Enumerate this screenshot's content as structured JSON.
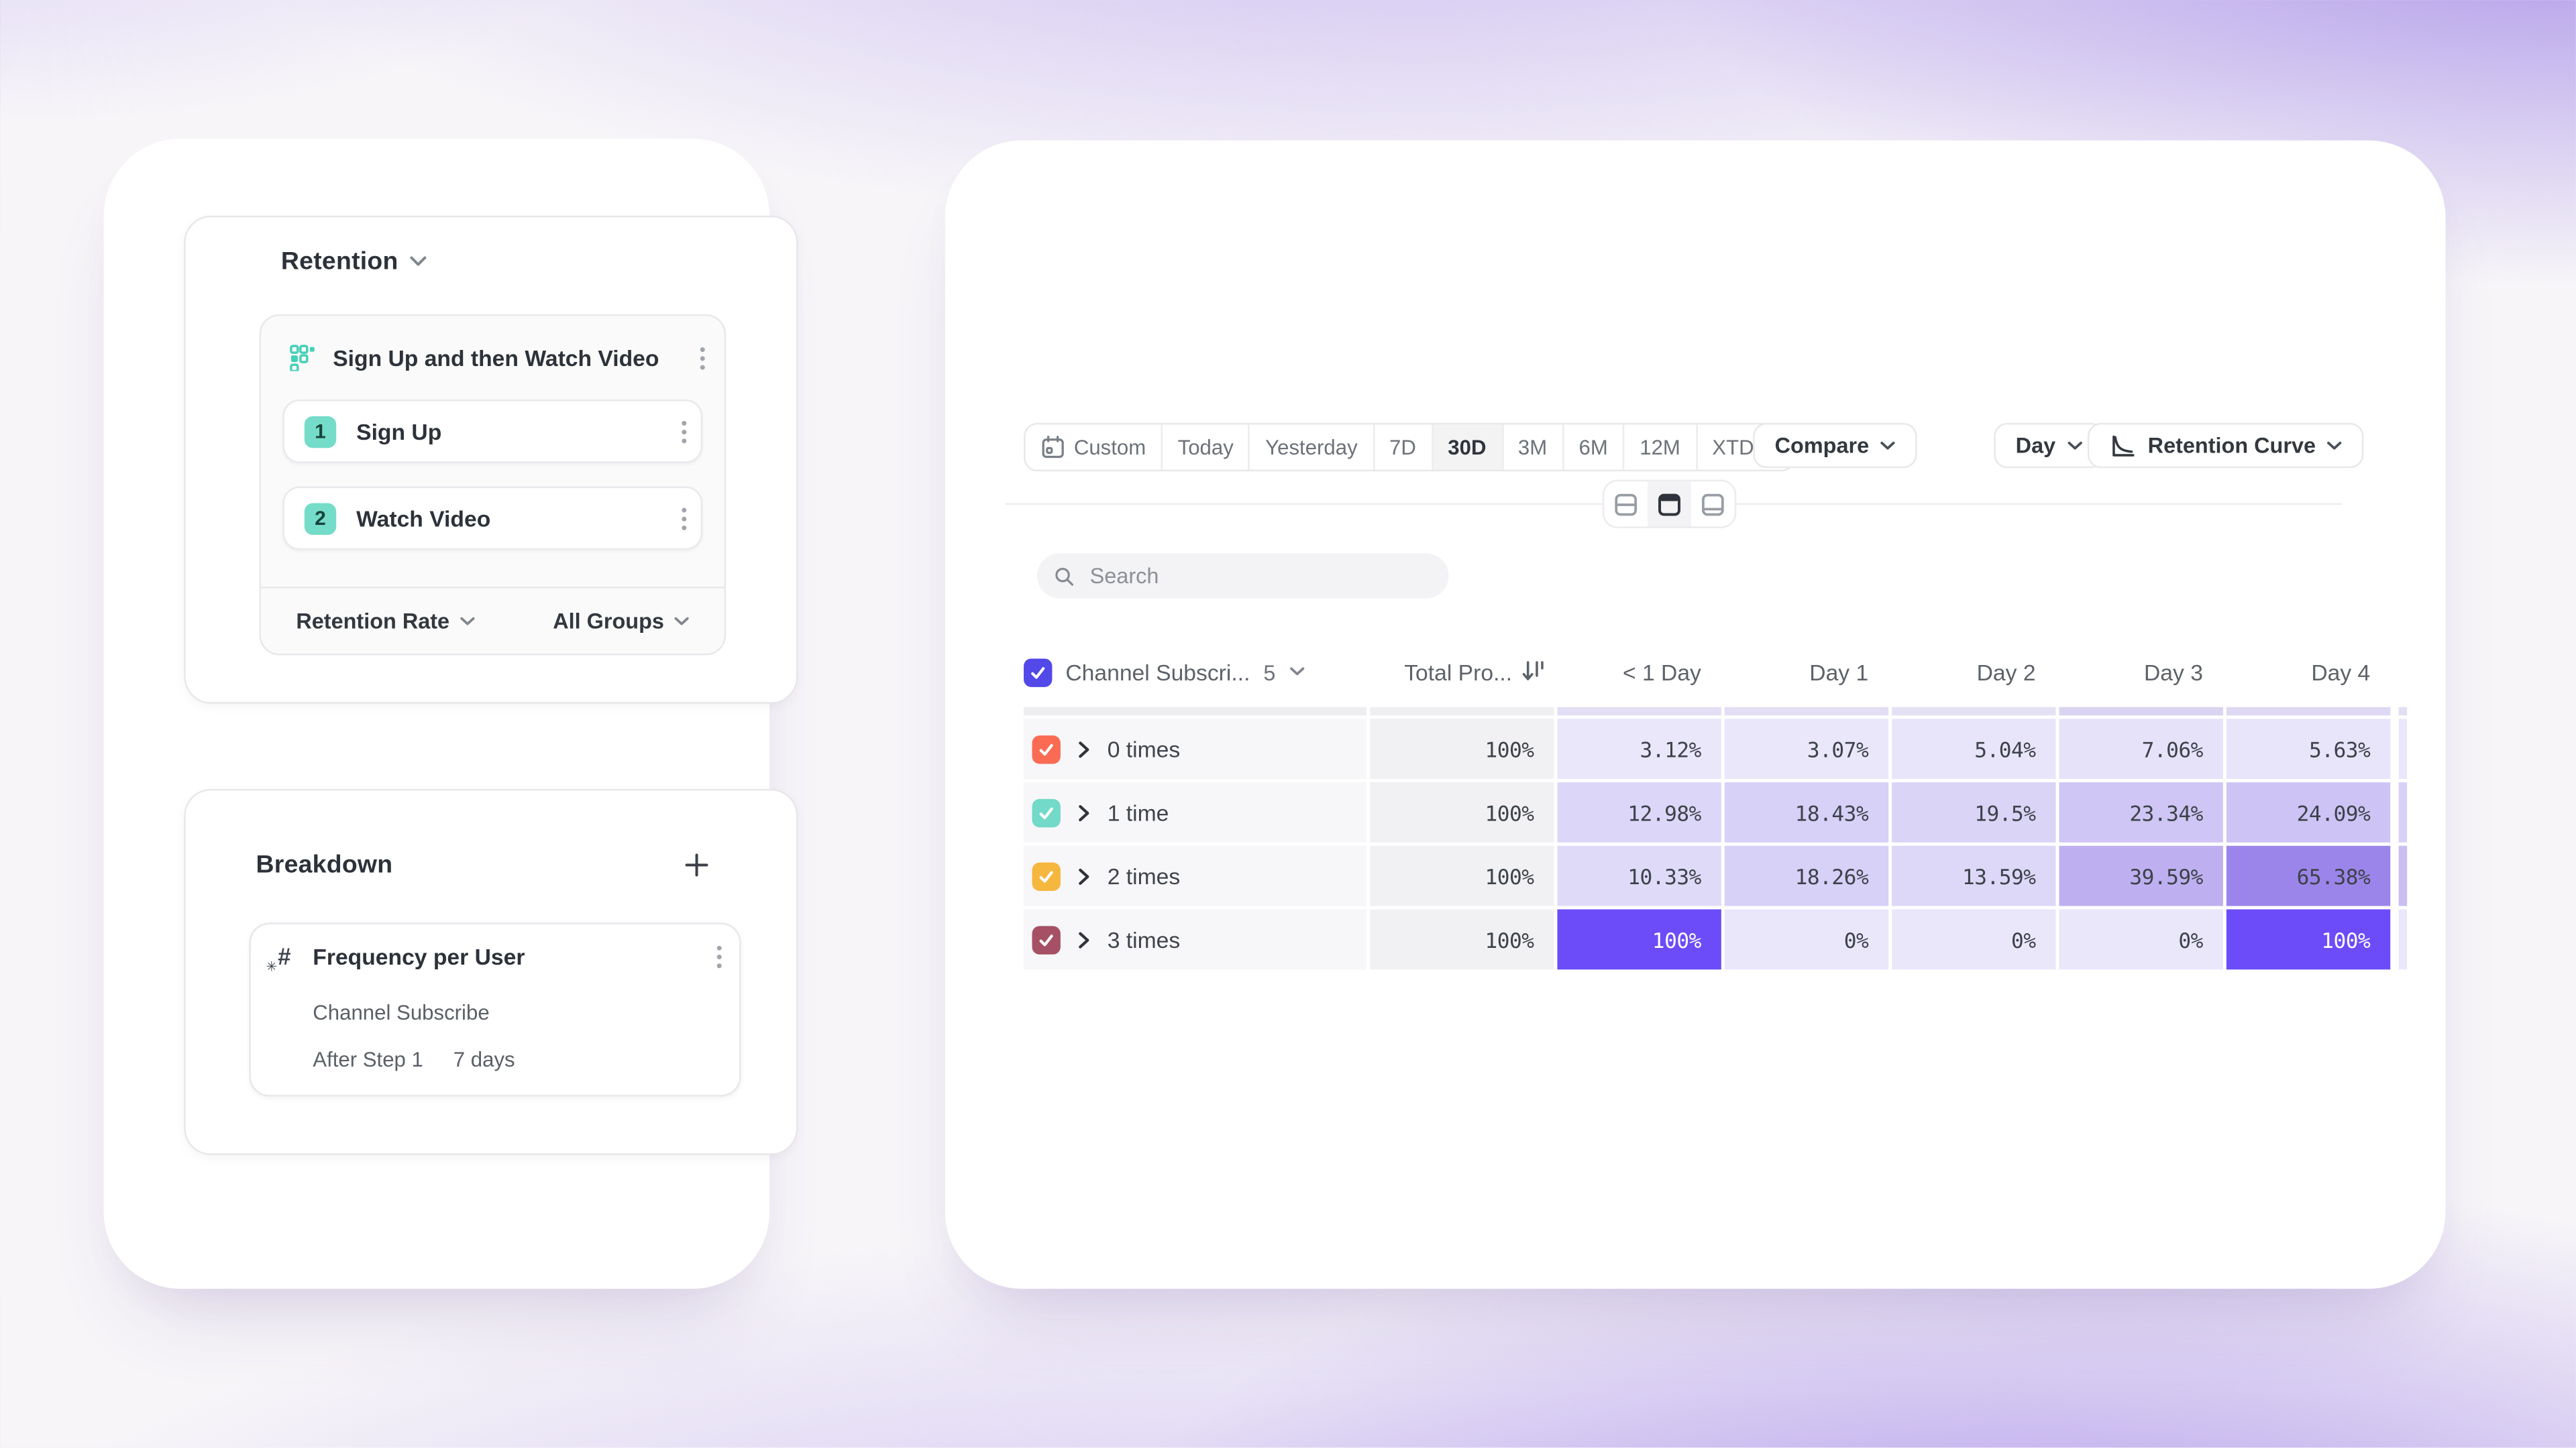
{
  "colors": {
    "accent_purple": "#6b4cf8",
    "select_all_checkbox": "#5348e8",
    "teal_badge": "#74dcc8"
  },
  "icons": {
    "hash": "#",
    "sparkle": "✳"
  },
  "left_panel": {
    "retention": {
      "title": "Retention",
      "query": {
        "title": "Sign Up and then Watch Video",
        "steps": [
          {
            "num": "1",
            "label": "Sign Up"
          },
          {
            "num": "2",
            "label": "Watch Video"
          }
        ],
        "footer_left": "Retention Rate",
        "footer_right": "All Groups"
      }
    },
    "breakdown": {
      "title": "Breakdown",
      "card": {
        "title": "Frequency per User",
        "line1": "Channel Subscribe",
        "line2_left": "After Step 1",
        "line2_right": "7 days"
      }
    }
  },
  "toolbar": {
    "segments": [
      {
        "label": "Custom",
        "icon": "calendar",
        "active": false,
        "chevron": false
      },
      {
        "label": "Today",
        "active": false,
        "chevron": false
      },
      {
        "label": "Yesterday",
        "active": false,
        "chevron": false
      },
      {
        "label": "7D",
        "active": false,
        "chevron": false
      },
      {
        "label": "30D",
        "active": true,
        "chevron": false
      },
      {
        "label": "3M",
        "active": false,
        "chevron": false
      },
      {
        "label": "6M",
        "active": false,
        "chevron": false
      },
      {
        "label": "12M",
        "active": false,
        "chevron": false
      },
      {
        "label": "XTD",
        "active": false,
        "chevron": true
      }
    ],
    "compare_label": "Compare",
    "granularity_label": "Day",
    "view_label": "Retention Curve",
    "search_placeholder": "Search"
  },
  "table": {
    "header": {
      "breakdown_col": "Channel Subscri...",
      "count": "5",
      "total_col": "Total Pro...",
      "day_cols": [
        "< 1 Day",
        "Day 1",
        "Day 2",
        "Day 3",
        "Day 4"
      ]
    },
    "peek_row": {
      "label_bg": "#eeedf0",
      "total_bg": "#efeef0",
      "cell_bgs": [
        "#e3def4",
        "#e3def4",
        "#e5e1f5",
        "#dad3f1",
        "#ded8f3"
      ],
      "sliver_bg": "#e3def4"
    },
    "rows": [
      {
        "label": "0 times",
        "checkbox_color": "#f96b53",
        "total": "100%",
        "cells": [
          {
            "v": "3.12%",
            "bg": "#eae7fb"
          },
          {
            "v": "3.07%",
            "bg": "#eae7fb"
          },
          {
            "v": "5.04%",
            "bg": "#e8e5fa"
          },
          {
            "v": "7.06%",
            "bg": "#e6e2fa"
          },
          {
            "v": "5.63%",
            "bg": "#e8e4fa"
          }
        ],
        "sliver_bg": "#eae7fb"
      },
      {
        "label": "1 time",
        "checkbox_color": "#73d9c9",
        "total": "100%",
        "cells": [
          {
            "v": "12.98%",
            "bg": "#dcd7f8"
          },
          {
            "v": "18.43%",
            "bg": "#d7d0f7"
          },
          {
            "v": "19.5%",
            "bg": "#dad4f7"
          },
          {
            "v": "23.34%",
            "bg": "#cfc6f5"
          },
          {
            "v": "24.09%",
            "bg": "#cdc4f5"
          }
        ],
        "sliver_bg": "#d8d1f7"
      },
      {
        "label": "2 times",
        "checkbox_color": "#f6b73f",
        "total": "100%",
        "cells": [
          {
            "v": "10.33%",
            "bg": "#dfdaf8"
          },
          {
            "v": "18.26%",
            "bg": "#d7d0f7"
          },
          {
            "v": "13.59%",
            "bg": "#ddd7f8"
          },
          {
            "v": "39.59%",
            "bg": "#beb0f0"
          },
          {
            "v": "65.38%",
            "bg": "#9c85ea"
          }
        ],
        "sliver_bg": "#c9bff3"
      },
      {
        "label": "3 times",
        "checkbox_color": "#a55064",
        "total": "100%",
        "cells": [
          {
            "v": "100%",
            "bg": "#6b4cf8",
            "fg": "#ffffff"
          },
          {
            "v": "0%",
            "bg": "#eae7fb"
          },
          {
            "v": "0%",
            "bg": "#eae7fb"
          },
          {
            "v": "0%",
            "bg": "#eae7fb"
          },
          {
            "v": "100%",
            "bg": "#6b4cf8",
            "fg": "#ffffff"
          }
        ],
        "sliver_bg": "#eae7fb"
      }
    ]
  }
}
